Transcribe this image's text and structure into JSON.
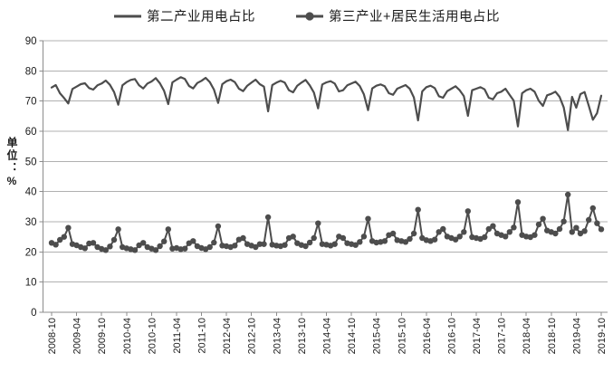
{
  "colors": {
    "series": "#4d4d4d",
    "gridline": "#b0b0b0",
    "axis": "#8c8c8c",
    "text": "#1a1a1a",
    "background": "#ffffff"
  },
  "chart_data": {
    "type": "line",
    "title": "",
    "ylabel": "单位：%",
    "ylim": [
      0,
      90
    ],
    "y_ticks": [
      90,
      80,
      70,
      60,
      50,
      40,
      30,
      20,
      10,
      0
    ],
    "grid": "horizontal",
    "legend_position": "top-center",
    "x_frequency": "monthly",
    "x_start": "2008-10",
    "x_end": "2019-10",
    "x_tick_labels": [
      "2008-10",
      "2009-04",
      "2009-10",
      "2010-04",
      "2010-10",
      "2011-04",
      "2011-10",
      "2012-04",
      "2012-10",
      "2013-04",
      "2013-10",
      "2014-04",
      "2014-10",
      "2015-04",
      "2015-10",
      "2016-04",
      "2016-10",
      "2017-04",
      "2017-10",
      "2018-04",
      "2018-10",
      "2019-04",
      "2019-10"
    ],
    "x_ticks_every_n_points": 6,
    "series": [
      {
        "name": "第二产业用电占比",
        "marker": "none",
        "color": "#4d4d4d",
        "values": [
          74.5,
          75.3,
          72.6,
          71.0,
          69.2,
          74.0,
          74.8,
          75.6,
          75.9,
          74.3,
          73.8,
          75.2,
          75.8,
          76.8,
          75.4,
          73.0,
          68.8,
          75.2,
          76.3,
          77.0,
          77.3,
          75.2,
          74.2,
          75.8,
          76.5,
          77.6,
          75.9,
          73.4,
          69.0,
          76.2,
          77.1,
          77.9,
          77.3,
          75.0,
          74.2,
          76.0,
          76.7,
          77.7,
          76.3,
          73.8,
          69.4,
          75.6,
          76.6,
          77.1,
          76.3,
          74.1,
          73.3,
          75.1,
          76.1,
          77.1,
          75.6,
          74.8,
          66.6,
          75.3,
          76.1,
          76.7,
          76.1,
          73.6,
          72.9,
          75.1,
          76.1,
          77.0,
          75.2,
          72.8,
          67.6,
          75.5,
          76.2,
          76.6,
          75.8,
          73.2,
          73.6,
          75.2,
          75.8,
          76.4,
          75.0,
          72.2,
          67.0,
          74.2,
          75.1,
          75.5,
          74.9,
          72.6,
          72.1,
          74.1,
          74.7,
          75.3,
          74.1,
          71.2,
          63.6,
          73.2,
          74.6,
          75.1,
          74.3,
          71.6,
          71.1,
          73.3,
          74.1,
          74.9,
          73.6,
          71.6,
          65.1,
          73.6,
          74.1,
          74.6,
          73.9,
          71.1,
          70.6,
          72.6,
          73.1,
          74.1,
          72.1,
          70.1,
          61.6,
          72.6,
          73.6,
          74.1,
          73.1,
          70.1,
          68.4,
          71.9,
          72.4,
          73.1,
          71.4,
          67.9,
          60.4,
          71.4,
          67.8,
          72.3,
          73.0,
          68.5,
          63.8,
          66.0,
          71.8
        ]
      },
      {
        "name": "第三产业+居民生活用电占比",
        "marker": "circle",
        "color": "#4d4d4d",
        "values": [
          23.0,
          22.4,
          24.0,
          25.0,
          28.0,
          22.6,
          22.2,
          21.6,
          21.2,
          22.8,
          23.0,
          21.6,
          21.0,
          20.6,
          21.8,
          24.0,
          27.5,
          21.6,
          21.2,
          20.9,
          20.6,
          22.2,
          23.0,
          21.6,
          21.1,
          20.6,
          21.9,
          23.5,
          27.5,
          21.1,
          21.3,
          20.9,
          21.1,
          22.9,
          23.6,
          21.9,
          21.3,
          20.9,
          21.6,
          23.1,
          28.5,
          22.1,
          21.9,
          21.6,
          22.1,
          24.1,
          24.6,
          22.6,
          22.1,
          21.6,
          22.6,
          22.6,
          31.5,
          22.4,
          22.1,
          21.9,
          22.3,
          24.6,
          25.1,
          22.9,
          22.3,
          21.9,
          23.1,
          24.6,
          29.5,
          22.6,
          22.4,
          22.1,
          22.6,
          25.1,
          24.6,
          22.9,
          22.6,
          22.3,
          23.3,
          25.1,
          31.0,
          23.6,
          23.1,
          23.3,
          23.6,
          25.6,
          26.1,
          23.9,
          23.6,
          23.3,
          24.3,
          26.1,
          34.0,
          24.6,
          23.9,
          23.6,
          24.1,
          26.6,
          27.6,
          25.1,
          24.6,
          24.1,
          25.1,
          26.6,
          33.5,
          24.9,
          24.6,
          24.3,
          24.9,
          27.6,
          28.6,
          26.1,
          25.6,
          25.1,
          26.6,
          28.1,
          36.5,
          25.6,
          25.1,
          24.9,
          25.6,
          29.1,
          31.0,
          27.1,
          26.6,
          26.1,
          27.6,
          30.1,
          39.0,
          26.6,
          28.0,
          26.1,
          26.9,
          30.6,
          34.5,
          29.5,
          27.5
        ]
      }
    ]
  }
}
